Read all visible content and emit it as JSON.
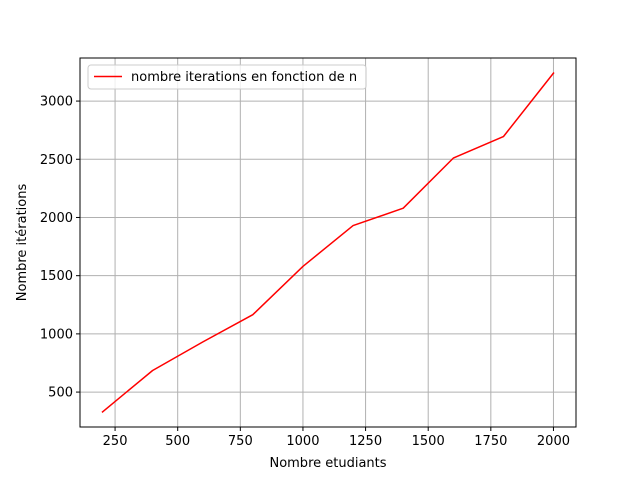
{
  "chart_data": {
    "type": "line",
    "title": "",
    "xlabel": "Nombre etudiants",
    "ylabel": "Nombre itérations",
    "xlim": [
      110,
      2090
    ],
    "ylim": [
      200,
      3370
    ],
    "xticks": [
      250,
      500,
      750,
      1000,
      1250,
      1500,
      1750,
      2000
    ],
    "yticks": [
      500,
      1000,
      1500,
      2000,
      2500,
      3000
    ],
    "grid": true,
    "legend_position": "top-left",
    "series": [
      {
        "name": "nombre iterations en fonction de n",
        "color": "#ff0000",
        "x": [
          200,
          400,
          600,
          800,
          1000,
          1200,
          1400,
          1600,
          1800,
          2000
        ],
        "y": [
          330,
          685,
          930,
          1165,
          1580,
          1930,
          2080,
          2510,
          2695,
          3240
        ]
      }
    ]
  }
}
